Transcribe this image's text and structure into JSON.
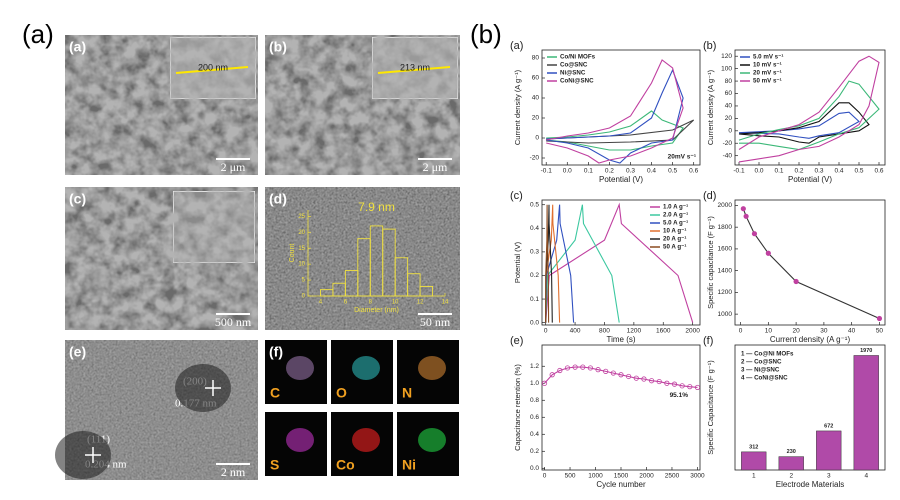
{
  "figure_labels": [
    "(a)",
    "(b)"
  ],
  "panels": [
    {
      "label": "(a)",
      "scale_bar": "2 μm",
      "inset_label": "200 nm"
    },
    {
      "label": "(b)",
      "scale_bar": "2 μm",
      "inset_label": "213 nm"
    },
    {
      "label": "(c)",
      "scale_bar": "500 nm"
    },
    {
      "label": "(d)",
      "scale_bar": "50 nm"
    },
    {
      "label": "(e)",
      "scale_bar": "2 nm",
      "annotations": [
        "(200)",
        "0.177 nm",
        "(111)",
        "0.204 nm"
      ]
    },
    {
      "label": "(f)",
      "elements": [
        "C",
        "O",
        "N",
        "S",
        "Co",
        "Ni"
      ]
    }
  ],
  "chart_data": [
    {
      "type": "line",
      "panel": "(a)",
      "xlabel": "Potential (V)",
      "ylabel": "Current density (A g⁻¹)",
      "annotation": "20mV s⁻¹",
      "legend": "upper left",
      "xlim": [
        -0.12,
        0.63
      ],
      "ylim": [
        -27,
        88
      ],
      "xticks": [
        -0.1,
        {
          "value": 0,
          "label": "0.0"
        },
        0.1,
        0.2,
        0.3,
        0.4,
        0.5,
        0.6
      ],
      "yticks": [
        -20,
        0,
        20,
        40,
        60,
        80
      ],
      "series": [
        {
          "name": "Co/Ni MOFs",
          "color": "#3cb878",
          "x": [
            -0.1,
            0,
            0.1,
            0.2,
            0.3,
            0.4,
            0.45,
            0.5,
            0.55,
            0.5,
            0.4,
            0.3,
            0.2,
            0.1,
            0,
            -0.1
          ],
          "values": [
            0,
            1,
            3,
            6,
            12,
            27,
            18,
            14,
            10,
            -5,
            -8,
            -12,
            -12,
            -8,
            -4,
            -2
          ]
        },
        {
          "name": "Co@SNC",
          "color": "#444444",
          "x": [
            -0.1,
            0.1,
            0.3,
            0.5,
            0.6,
            0.5,
            0.3,
            0.1,
            -0.1
          ],
          "values": [
            -1,
            1,
            3,
            8,
            18,
            -2,
            -4,
            -5,
            -3
          ]
        },
        {
          "name": "Ni@SNC",
          "color": "#3050c0",
          "x": [
            -0.1,
            0,
            0.1,
            0.2,
            0.3,
            0.4,
            0.45,
            0.5,
            0.55,
            0.5,
            0.4,
            0.3,
            0.25,
            0.2,
            0.1,
            0,
            -0.1
          ],
          "values": [
            -1,
            0,
            1,
            2,
            5,
            20,
            45,
            68,
            40,
            -2,
            -5,
            -15,
            -25,
            -22,
            -10,
            -5,
            -2
          ]
        },
        {
          "name": "CoNi@SNC",
          "color": "#c040a0",
          "x": [
            -0.1,
            0,
            0.1,
            0.2,
            0.3,
            0.4,
            0.45,
            0.5,
            0.55,
            0.5,
            0.4,
            0.3,
            0.2,
            0.15,
            0.1,
            0,
            -0.1
          ],
          "values": [
            -2,
            2,
            5,
            10,
            22,
            55,
            78,
            70,
            30,
            0,
            -10,
            -18,
            -22,
            -25,
            -18,
            -10,
            -5
          ]
        }
      ]
    },
    {
      "type": "line",
      "panel": "(b)",
      "xlabel": "Potential (V)",
      "ylabel": "Current density (A g⁻¹)",
      "legend": "upper left",
      "xlim": [
        -0.12,
        0.63
      ],
      "ylim": [
        -55,
        130
      ],
      "xticks": [
        -0.1,
        {
          "value": 0,
          "label": "0.0"
        },
        0.1,
        0.2,
        0.3,
        0.4,
        0.5,
        0.6
      ],
      "yticks": [
        -40,
        -20,
        0,
        20,
        40,
        60,
        80,
        100,
        120
      ],
      "series": [
        {
          "name": "5.0 mV s⁻¹",
          "color": "#3050c0",
          "x": [
            -0.1,
            0.1,
            0.2,
            0.3,
            0.4,
            0.45,
            0.5,
            0.4,
            0.3,
            0.25,
            0.2,
            0.1,
            -0.1
          ],
          "values": [
            -3,
            0,
            3,
            8,
            28,
            30,
            15,
            -3,
            -8,
            -12,
            -10,
            -5,
            -3
          ]
        },
        {
          "name": "10 mV s⁻¹",
          "color": "#111111",
          "x": [
            -0.1,
            0,
            0.1,
            0.2,
            0.3,
            0.4,
            0.45,
            0.5,
            0.55,
            0.5,
            0.4,
            0.3,
            0.25,
            0.2,
            0.1,
            0,
            -0.1
          ],
          "values": [
            -5,
            -3,
            0,
            5,
            15,
            45,
            45,
            30,
            10,
            0,
            -5,
            -10,
            -20,
            -18,
            -10,
            -8,
            -5
          ]
        },
        {
          "name": "20 mV s⁻¹",
          "color": "#3cb878",
          "x": [
            -0.1,
            0,
            0.1,
            0.2,
            0.3,
            0.4,
            0.45,
            0.5,
            0.6,
            0.5,
            0.4,
            0.3,
            0.2,
            0.1,
            0,
            -0.1
          ],
          "values": [
            -15,
            -5,
            2,
            8,
            20,
            55,
            80,
            75,
            35,
            5,
            -5,
            -18,
            -30,
            -25,
            -20,
            -20
          ]
        },
        {
          "name": "50 mV s⁻¹",
          "color": "#c040a0",
          "x": [
            -0.1,
            0,
            0.1,
            0.2,
            0.3,
            0.4,
            0.5,
            0.55,
            0.6,
            0.55,
            0.5,
            0.4,
            0.3,
            0.2,
            0.1,
            0,
            -0.1
          ],
          "values": [
            -30,
            -10,
            0,
            10,
            30,
            70,
            112,
            120,
            110,
            40,
            10,
            -10,
            -25,
            -30,
            -40,
            -45,
            -50
          ]
        }
      ]
    },
    {
      "type": "line",
      "panel": "(c)",
      "xlabel": "Time (s)",
      "ylabel": "Potential (V)",
      "legend": "upper right",
      "xlim": [
        -50,
        2100
      ],
      "ylim": [
        -0.01,
        0.52
      ],
      "xticks": [
        0,
        400,
        800,
        1200,
        1600,
        2000
      ],
      "yticks": [
        {
          "value": 0,
          "label": "0.0"
        },
        0.1,
        0.2,
        0.3,
        0.4,
        0.5
      ],
      "series": [
        {
          "name": "1.0 A g⁻¹",
          "color": "#c040a0",
          "x": [
            0,
            50,
            800,
            1000,
            1030,
            1800,
            2000
          ],
          "values": [
            0,
            0.2,
            0.35,
            0.5,
            0.42,
            0.2,
            0
          ]
        },
        {
          "name": "2.0 A g⁻¹",
          "color": "#3cc8a0",
          "x": [
            0,
            25,
            400,
            500,
            515,
            900,
            1000
          ],
          "values": [
            0,
            0.2,
            0.35,
            0.5,
            0.42,
            0.2,
            0
          ]
        },
        {
          "name": "5.0 A g⁻¹",
          "color": "#3050c0",
          "x": [
            0,
            10,
            150,
            190,
            196,
            340,
            380
          ],
          "values": [
            0,
            0.2,
            0.35,
            0.5,
            0.42,
            0.2,
            0
          ]
        },
        {
          "name": "10 A g⁻¹",
          "color": "#e07030",
          "x": [
            0,
            5,
            76,
            95,
            98,
            171,
            190
          ],
          "values": [
            0,
            0.2,
            0.35,
            0.5,
            0.42,
            0.2,
            0
          ]
        },
        {
          "name": "20 A g⁻¹",
          "color": "#222222",
          "x": [
            0,
            3,
            36,
            45,
            47,
            81,
            90
          ],
          "values": [
            0,
            0.2,
            0.35,
            0.5,
            0.42,
            0.2,
            0
          ]
        },
        {
          "name": "50 A g⁻¹",
          "color": "#8a4b20",
          "x": [
            0,
            1,
            16,
            20,
            21,
            36,
            40
          ],
          "values": [
            0,
            0.2,
            0.35,
            0.5,
            0.42,
            0.2,
            0
          ]
        }
      ]
    },
    {
      "type": "line",
      "panel": "(d)",
      "xlabel": "Current density (A g⁻¹)",
      "ylabel": "Specific capacitance (F g⁻¹)",
      "markers": true,
      "xlim": [
        -2,
        52
      ],
      "ylim": [
        900,
        2050
      ],
      "xticks": [
        0,
        10,
        20,
        30,
        40,
        50
      ],
      "yticks": [
        1000,
        1200,
        1400,
        1600,
        1800,
        2000
      ],
      "series": [
        {
          "color": "#333333",
          "marker_color": "#c040a0",
          "x": [
            1,
            2,
            5,
            10,
            20,
            50
          ],
          "values": [
            1970,
            1900,
            1740,
            1560,
            1300,
            960
          ]
        }
      ]
    },
    {
      "type": "line",
      "panel": "(e)",
      "xlabel": "Cycle number",
      "ylabel": "Capacitance retention (%)",
      "annotation": "95.1%",
      "markers": true,
      "xlim": [
        -50,
        3050
      ],
      "ylim": [
        -0.02,
        1.45
      ],
      "xticks": [
        0,
        500,
        1000,
        1500,
        2000,
        2500,
        3000
      ],
      "yticks": [
        {
          "value": 0,
          "label": "0.0"
        },
        0.2,
        0.4,
        0.6,
        0.8,
        {
          "value": 1,
          "label": "1.0"
        },
        1.2
      ],
      "series": [
        {
          "color": "#c040a0",
          "marker_color": "#c040a0",
          "x": [
            0,
            150,
            300,
            450,
            600,
            750,
            900,
            1050,
            1200,
            1350,
            1500,
            1650,
            1800,
            1950,
            2100,
            2250,
            2400,
            2550,
            2700,
            2850,
            3000
          ],
          "values": [
            1.0,
            1.1,
            1.15,
            1.18,
            1.19,
            1.19,
            1.18,
            1.16,
            1.14,
            1.12,
            1.1,
            1.08,
            1.06,
            1.05,
            1.03,
            1.02,
            1.0,
            0.99,
            0.97,
            0.96,
            0.951
          ]
        }
      ]
    },
    {
      "type": "bar",
      "panel": "(f)",
      "xlabel": "Electrode Materials",
      "ylabel": "Specific Capacitance (F g⁻¹)",
      "color": "#b04aa8",
      "legend_items": [
        "1 — Co@Ni MOFs",
        "2 — Co@SNC",
        "3 — Ni@SNC",
        "4 — CoNi@SNC"
      ],
      "categories": [
        "1",
        "2",
        "3",
        "4"
      ],
      "values": [
        312,
        230,
        672,
        1970
      ],
      "ylim": [
        0,
        2150
      ]
    },
    {
      "type": "histogram",
      "title": "7.9 nm",
      "xlabel": "Diameter (nm)",
      "ylabel": "Count",
      "color": "#f0e040",
      "bins": [
        4,
        5,
        6,
        7,
        8,
        9,
        10,
        11,
        12,
        13
      ],
      "values": [
        2,
        4,
        8,
        18,
        22,
        21,
        12,
        7,
        3
      ],
      "xlim": [
        3,
        14
      ],
      "ylim": [
        0,
        27
      ],
      "xticks": [
        4,
        6,
        8,
        10,
        12,
        14
      ],
      "yticks": [
        0,
        5,
        10,
        15,
        20,
        25
      ]
    }
  ]
}
